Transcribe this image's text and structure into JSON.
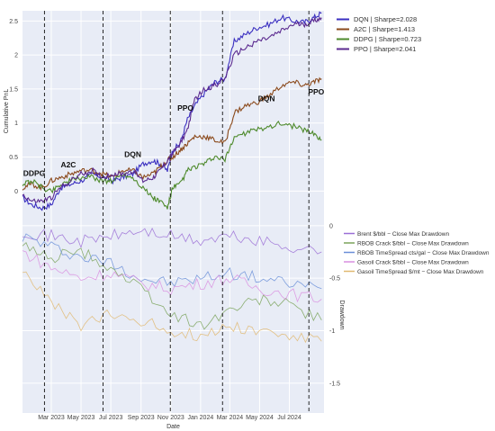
{
  "chart_data": [
    {
      "type": "line",
      "ylabel": "Cumulative PnL",
      "ylim": [
        -0.3,
        2.65
      ],
      "yticks": [
        "0",
        "0.5",
        "1",
        "1.5",
        "2",
        "2.5"
      ],
      "ytick_values": [
        0,
        0.5,
        1,
        1.5,
        2,
        2.5
      ],
      "legend_position": "top-right",
      "series": [
        {
          "name": "DQN | Sharpe=2.028",
          "color": "#3a2fc0",
          "dates": [
            "2023-01-01",
            "2023-01-20",
            "2023-02-10",
            "2023-03-01",
            "2023-03-20",
            "2023-04-10",
            "2023-05-01",
            "2023-05-25",
            "2023-06-15",
            "2023-07-05",
            "2023-07-25",
            "2023-08-15",
            "2023-09-05",
            "2023-09-25",
            "2023-10-10",
            "2023-10-25",
            "2023-11-05",
            "2023-11-20",
            "2023-12-05",
            "2023-12-20",
            "2024-01-10",
            "2024-01-30",
            "2024-02-20",
            "2024-03-10",
            "2024-04-01",
            "2024-04-25",
            "2024-05-20",
            "2024-06-15",
            "2024-07-10",
            "2024-08-01",
            "2024-08-20",
            "2024-09-05"
          ],
          "values": [
            -0.1,
            -0.2,
            -0.25,
            -0.2,
            0.05,
            0.1,
            0.15,
            0.25,
            0.2,
            0.15,
            0.2,
            0.25,
            0.4,
            0.45,
            0.4,
            0.3,
            0.6,
            0.7,
            1.05,
            1.25,
            1.45,
            1.6,
            1.65,
            2.2,
            2.3,
            2.4,
            2.45,
            2.55,
            2.5,
            2.48,
            2.55,
            2.62
          ]
        },
        {
          "name": "A2C | Sharpe=1.413",
          "color": "#8b4a1c",
          "dates": [
            "2023-01-01",
            "2023-01-20",
            "2023-02-10",
            "2023-03-01",
            "2023-03-20",
            "2023-04-10",
            "2023-05-01",
            "2023-05-25",
            "2023-06-15",
            "2023-07-05",
            "2023-07-25",
            "2023-08-15",
            "2023-09-05",
            "2023-09-25",
            "2023-10-10",
            "2023-10-25",
            "2023-11-05",
            "2023-11-20",
            "2023-12-05",
            "2023-12-20",
            "2024-01-10",
            "2024-01-30",
            "2024-02-20",
            "2024-03-10",
            "2024-04-01",
            "2024-04-25",
            "2024-05-20",
            "2024-06-15",
            "2024-07-10",
            "2024-08-01",
            "2024-08-20",
            "2024-09-05"
          ],
          "values": [
            0.05,
            0.1,
            0.05,
            0.15,
            0.2,
            0.25,
            0.3,
            0.3,
            0.25,
            0.2,
            0.3,
            0.3,
            0.2,
            0.25,
            0.35,
            0.45,
            0.5,
            0.6,
            0.7,
            0.8,
            0.8,
            0.75,
            0.7,
            1.15,
            1.25,
            1.3,
            1.4,
            1.55,
            1.6,
            1.55,
            1.6,
            1.65
          ]
        },
        {
          "name": "DDPG | Sharpe=0.723",
          "color": "#4e8a2c",
          "dates": [
            "2023-01-01",
            "2023-01-20",
            "2023-02-10",
            "2023-03-01",
            "2023-03-20",
            "2023-04-10",
            "2023-05-01",
            "2023-05-25",
            "2023-06-15",
            "2023-07-05",
            "2023-07-25",
            "2023-08-15",
            "2023-09-05",
            "2023-09-25",
            "2023-10-10",
            "2023-10-25",
            "2023-11-05",
            "2023-11-20",
            "2023-12-05",
            "2023-12-20",
            "2024-01-10",
            "2024-01-30",
            "2024-02-20",
            "2024-03-10",
            "2024-04-01",
            "2024-04-25",
            "2024-05-20",
            "2024-06-15",
            "2024-07-10",
            "2024-08-01",
            "2024-08-20",
            "2024-09-05"
          ],
          "values": [
            0.1,
            0.15,
            0.05,
            0.0,
            0.1,
            0.15,
            0.2,
            0.2,
            0.15,
            0.15,
            0.25,
            0.2,
            0.05,
            -0.1,
            -0.15,
            -0.25,
            0.05,
            0.1,
            0.3,
            0.35,
            0.4,
            0.5,
            0.45,
            0.8,
            0.85,
            0.9,
            0.95,
            1.0,
            0.95,
            0.9,
            0.85,
            0.75
          ]
        },
        {
          "name": "PPO | Sharpe=2.041",
          "color": "#5b2a8f",
          "dates": [
            "2023-01-01",
            "2023-01-20",
            "2023-02-10",
            "2023-03-01",
            "2023-03-20",
            "2023-04-10",
            "2023-05-01",
            "2023-05-25",
            "2023-06-15",
            "2023-07-05",
            "2023-07-25",
            "2023-08-15",
            "2023-09-05",
            "2023-09-25",
            "2023-10-10",
            "2023-10-25",
            "2023-11-05",
            "2023-11-20",
            "2023-12-05",
            "2023-12-20",
            "2024-01-10",
            "2024-01-30",
            "2024-02-20",
            "2024-03-10",
            "2024-04-01",
            "2024-04-25",
            "2024-05-20",
            "2024-06-15",
            "2024-07-10",
            "2024-08-01",
            "2024-08-20",
            "2024-09-05"
          ],
          "values": [
            -0.05,
            -0.15,
            -0.15,
            -0.1,
            0.05,
            0.15,
            0.25,
            0.3,
            0.2,
            0.25,
            0.25,
            0.3,
            0.15,
            0.2,
            0.3,
            0.45,
            0.55,
            0.7,
            0.9,
            1.35,
            1.5,
            1.55,
            1.65,
            2.0,
            2.1,
            2.2,
            2.25,
            2.35,
            2.45,
            2.45,
            2.5,
            2.55
          ]
        }
      ],
      "annotations": [
        {
          "text": "DDPG",
          "x": "2023-01-25",
          "y": 0.22
        },
        {
          "text": "A2C",
          "x": "2023-04-05",
          "y": 0.35
        },
        {
          "text": "DQN",
          "x": "2023-08-15",
          "y": 0.5
        },
        {
          "text": "PPO",
          "x": "2023-12-01",
          "y": 1.18
        },
        {
          "text": "DQN",
          "x": "2024-05-15",
          "y": 1.32
        },
        {
          "text": "PPO",
          "x": "2024-08-25",
          "y": 1.42
        }
      ],
      "vlines": [
        "2023-02-15",
        "2023-06-15",
        "2023-10-31",
        "2024-02-15",
        "2024-08-10"
      ]
    },
    {
      "type": "line",
      "ylabel": "Drawdown",
      "xlabel": "Date",
      "ylim": [
        -1.75,
        0.05
      ],
      "yticks": [
        "0",
        "-0.5",
        "-1",
        "-1.5"
      ],
      "ytick_values": [
        0,
        -0.5,
        -1,
        -1.5
      ],
      "xticks": [
        "Mar 2023",
        "May 2023",
        "Jul 2023",
        "Sep 2023",
        "Nov 2023",
        "Jan 2024",
        "Mar 2024",
        "May 2024",
        "Jul 2024"
      ],
      "xtick_dates": [
        "2023-03-01",
        "2023-05-01",
        "2023-07-01",
        "2023-09-01",
        "2023-11-01",
        "2024-01-01",
        "2024-03-01",
        "2024-05-01",
        "2024-07-01"
      ],
      "legend_position": "right",
      "series": [
        {
          "name": "Brent $/bbl − Close Max Drawdown",
          "color": "#9b6fd6",
          "dates": [
            "2023-01-01",
            "2023-03-01",
            "2023-05-01",
            "2023-07-01",
            "2023-09-01",
            "2023-11-01",
            "2024-01-01",
            "2024-03-01",
            "2024-05-01",
            "2024-07-01",
            "2024-09-05"
          ],
          "values": [
            -0.05,
            -0.1,
            -0.15,
            -0.1,
            -0.05,
            -0.1,
            -0.15,
            -0.1,
            -0.15,
            -0.2,
            -0.25
          ]
        },
        {
          "name": "RBOB Crack $/bbl − Close Max Drawdown",
          "color": "#7aa35a",
          "dates": [
            "2023-01-01",
            "2023-03-01",
            "2023-05-01",
            "2023-07-01",
            "2023-09-01",
            "2023-11-01",
            "2024-01-01",
            "2024-03-01",
            "2024-05-01",
            "2024-07-01",
            "2024-09-05"
          ],
          "values": [
            -0.2,
            -0.3,
            -0.25,
            -0.4,
            -0.6,
            -0.85,
            -0.95,
            -0.8,
            -0.7,
            -0.75,
            -0.9
          ]
        },
        {
          "name": "RBOB TimeSpread cts/gal − Close Max Drawdown",
          "color": "#6a8fd8",
          "dates": [
            "2023-01-01",
            "2023-03-01",
            "2023-05-01",
            "2023-07-01",
            "2023-09-01",
            "2023-11-01",
            "2024-01-01",
            "2024-03-01",
            "2024-05-01",
            "2024-07-01",
            "2024-09-05"
          ],
          "values": [
            -0.1,
            -0.2,
            -0.3,
            -0.35,
            -0.5,
            -0.55,
            -0.5,
            -0.45,
            -0.5,
            -0.55,
            -0.6
          ]
        },
        {
          "name": "Gasoil Crack $/bbl − Close Max Drawdown",
          "color": "#d98fe0",
          "dates": [
            "2023-01-01",
            "2023-03-01",
            "2023-05-01",
            "2023-07-01",
            "2023-09-01",
            "2023-11-01",
            "2024-01-01",
            "2024-03-01",
            "2024-05-01",
            "2024-07-01",
            "2024-09-05"
          ],
          "values": [
            -0.25,
            -0.4,
            -0.5,
            -0.45,
            -0.55,
            -0.6,
            -0.55,
            -0.5,
            -0.6,
            -0.65,
            -0.7
          ]
        },
        {
          "name": "Gasoil TimeSpread $/mt − Close Max Drawdown",
          "color": "#e0b870",
          "dates": [
            "2023-01-01",
            "2023-03-01",
            "2023-05-01",
            "2023-07-01",
            "2023-09-01",
            "2023-11-01",
            "2024-01-01",
            "2024-03-01",
            "2024-05-01",
            "2024-07-01",
            "2024-09-05"
          ],
          "values": [
            -0.4,
            -0.75,
            -0.95,
            -0.85,
            -0.9,
            -1.0,
            -1.05,
            -0.95,
            -1.0,
            -1.05,
            -1.1
          ]
        }
      ]
    }
  ]
}
